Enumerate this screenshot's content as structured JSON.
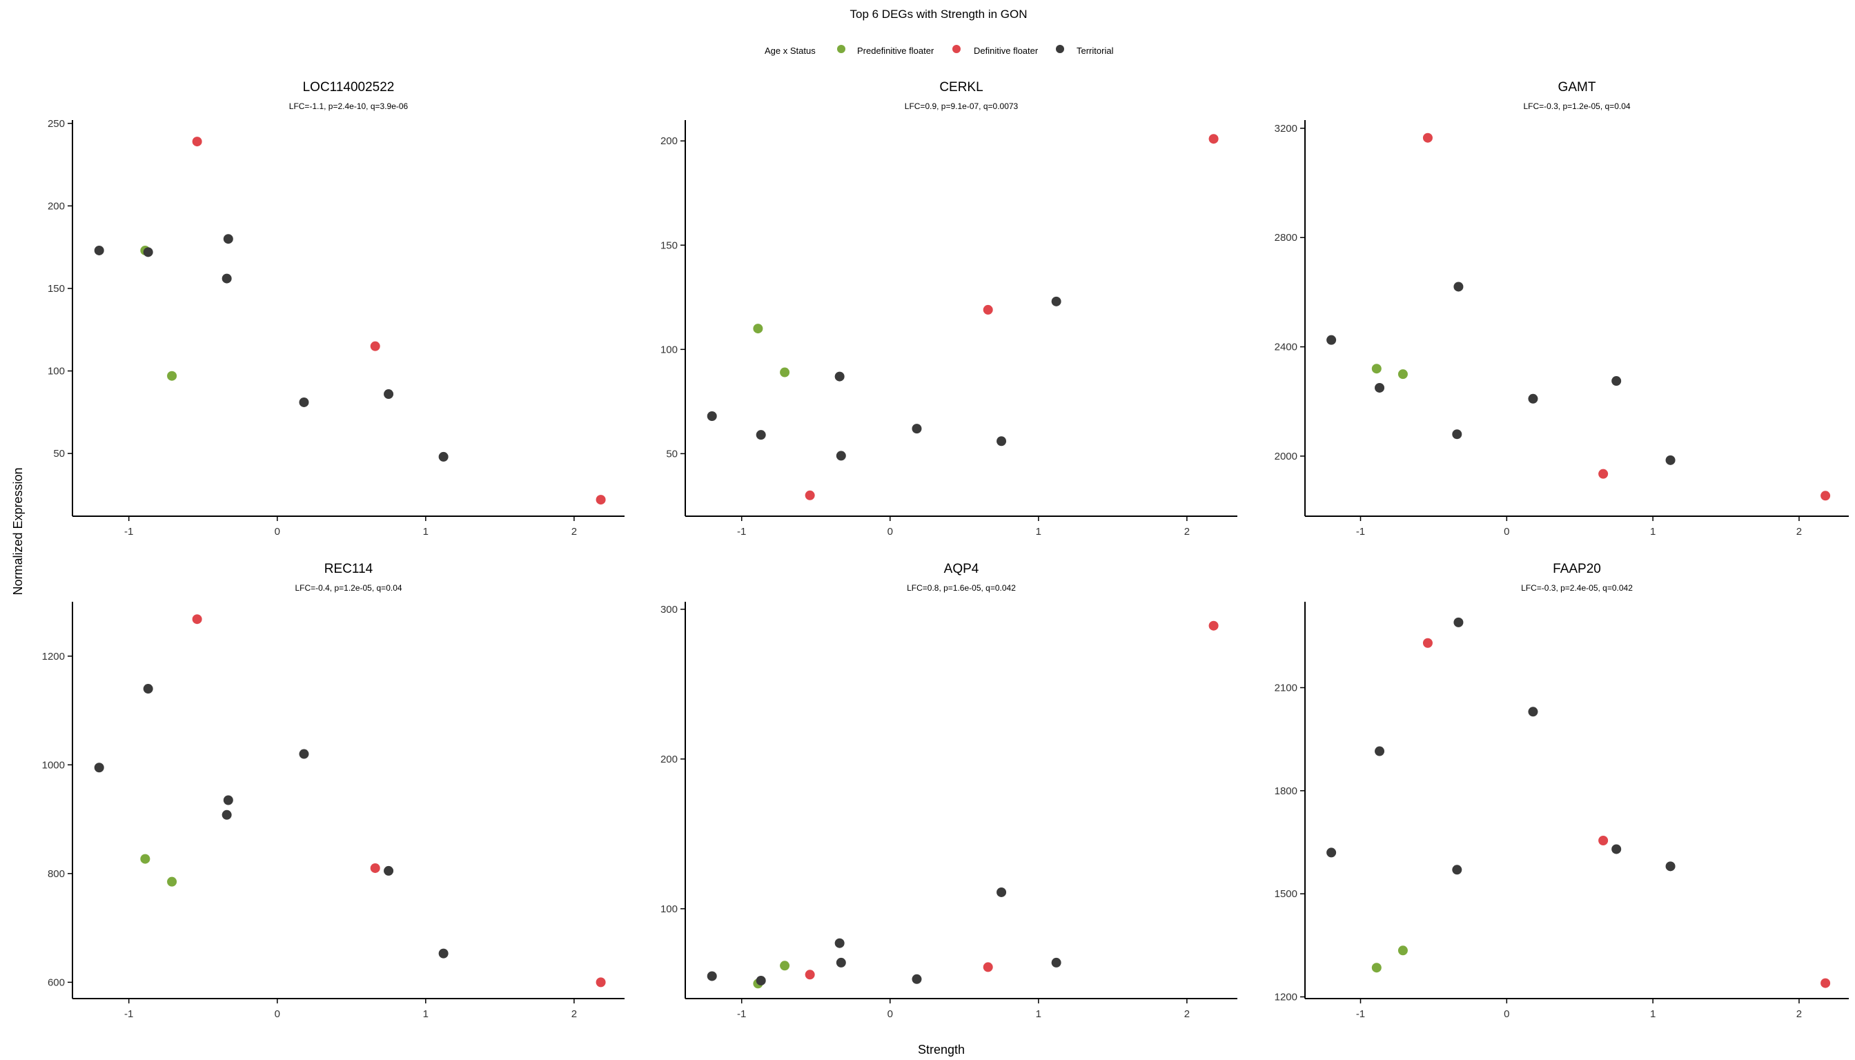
{
  "chart_data": {
    "type": "scatter",
    "title": "Top 6 DEGs with Strength in GON",
    "xlabel": "Strength",
    "ylabel": "Normalized Expression",
    "grid": false,
    "legend": {
      "title": "Age x Status",
      "placement": "top-center",
      "entries": [
        {
          "name": "Predefinitive floater",
          "color": "#7CAA3C"
        },
        {
          "name": "Definitive floater",
          "color": "#E0454B"
        },
        {
          "name": "Territorial",
          "color": "#3A3A3A"
        }
      ]
    },
    "xlim": [
      -1.38,
      2.34
    ],
    "xticks": [
      "-1",
      "0",
      "1",
      "2"
    ],
    "panels": [
      {
        "title": "LOC114002522",
        "subtitle": "LFC=-1.1, p=2.4e-10, q=3.9e-06",
        "ylim": [
          12,
          252
        ],
        "yticks": [
          "50",
          "100",
          "150",
          "200",
          "250"
        ],
        "points": [
          {
            "x": -1.2,
            "y": 173,
            "group": "Territorial"
          },
          {
            "x": -0.89,
            "y": 173,
            "group": "Predefinitive floater"
          },
          {
            "x": -0.87,
            "y": 172,
            "group": "Territorial"
          },
          {
            "x": -0.71,
            "y": 97,
            "group": "Predefinitive floater"
          },
          {
            "x": -0.54,
            "y": 239,
            "group": "Definitive floater"
          },
          {
            "x": -0.34,
            "y": 156,
            "group": "Territorial"
          },
          {
            "x": -0.33,
            "y": 180,
            "group": "Territorial"
          },
          {
            "x": 0.18,
            "y": 81,
            "group": "Territorial"
          },
          {
            "x": 0.66,
            "y": 115,
            "group": "Definitive floater"
          },
          {
            "x": 0.75,
            "y": 86,
            "group": "Territorial"
          },
          {
            "x": 1.12,
            "y": 48,
            "group": "Territorial"
          },
          {
            "x": 2.18,
            "y": 22,
            "group": "Definitive floater"
          }
        ]
      },
      {
        "title": "CERKL",
        "subtitle": "LFC=0.9, p=9.1e-07, q=0.0073",
        "ylim": [
          20,
          210
        ],
        "yticks": [
          "50",
          "100",
          "150",
          "200"
        ],
        "points": [
          {
            "x": -1.2,
            "y": 68,
            "group": "Territorial"
          },
          {
            "x": -0.89,
            "y": 110,
            "group": "Predefinitive floater"
          },
          {
            "x": -0.87,
            "y": 59,
            "group": "Territorial"
          },
          {
            "x": -0.71,
            "y": 89,
            "group": "Predefinitive floater"
          },
          {
            "x": -0.54,
            "y": 30,
            "group": "Definitive floater"
          },
          {
            "x": -0.34,
            "y": 87,
            "group": "Territorial"
          },
          {
            "x": -0.33,
            "y": 49,
            "group": "Territorial"
          },
          {
            "x": 0.18,
            "y": 62,
            "group": "Territorial"
          },
          {
            "x": 0.66,
            "y": 119,
            "group": "Definitive floater"
          },
          {
            "x": 0.75,
            "y": 56,
            "group": "Territorial"
          },
          {
            "x": 1.12,
            "y": 123,
            "group": "Territorial"
          },
          {
            "x": 2.18,
            "y": 201,
            "group": "Definitive floater"
          }
        ]
      },
      {
        "title": "GAMT",
        "subtitle": "LFC=-0.3, p=1.2e-05, q=0.04",
        "ylim": [
          1780,
          3230
        ],
        "yticks": [
          "2000",
          "2400",
          "2800",
          "3200"
        ],
        "points": [
          {
            "x": -1.2,
            "y": 2425,
            "group": "Territorial"
          },
          {
            "x": -0.89,
            "y": 2320,
            "group": "Predefinitive floater"
          },
          {
            "x": -0.87,
            "y": 2250,
            "group": "Territorial"
          },
          {
            "x": -0.71,
            "y": 2300,
            "group": "Predefinitive floater"
          },
          {
            "x": -0.54,
            "y": 3165,
            "group": "Definitive floater"
          },
          {
            "x": -0.34,
            "y": 2080,
            "group": "Territorial"
          },
          {
            "x": -0.33,
            "y": 2620,
            "group": "Territorial"
          },
          {
            "x": 0.18,
            "y": 2210,
            "group": "Territorial"
          },
          {
            "x": 0.66,
            "y": 1935,
            "group": "Definitive floater"
          },
          {
            "x": 0.75,
            "y": 2275,
            "group": "Territorial"
          },
          {
            "x": 1.12,
            "y": 1985,
            "group": "Territorial"
          },
          {
            "x": 2.18,
            "y": 1855,
            "group": "Definitive floater"
          }
        ]
      },
      {
        "title": "REC114",
        "subtitle": "LFC=-0.4, p=1.2e-05, q=0.04",
        "ylim": [
          570,
          1300
        ],
        "yticks": [
          "600",
          "800",
          "1000",
          "1200"
        ],
        "points": [
          {
            "x": -1.2,
            "y": 995,
            "group": "Territorial"
          },
          {
            "x": -0.89,
            "y": 827,
            "group": "Predefinitive floater"
          },
          {
            "x": -0.87,
            "y": 1140,
            "group": "Territorial"
          },
          {
            "x": -0.71,
            "y": 785,
            "group": "Predefinitive floater"
          },
          {
            "x": -0.54,
            "y": 1268,
            "group": "Definitive floater"
          },
          {
            "x": -0.34,
            "y": 908,
            "group": "Territorial"
          },
          {
            "x": -0.33,
            "y": 935,
            "group": "Territorial"
          },
          {
            "x": 0.18,
            "y": 1020,
            "group": "Territorial"
          },
          {
            "x": 0.66,
            "y": 810,
            "group": "Definitive floater"
          },
          {
            "x": 0.75,
            "y": 805,
            "group": "Territorial"
          },
          {
            "x": 1.12,
            "y": 653,
            "group": "Territorial"
          },
          {
            "x": 2.18,
            "y": 600,
            "group": "Definitive floater"
          }
        ]
      },
      {
        "title": "AQP4",
        "subtitle": "LFC=0.8, p=1.6e-05, q=0.042",
        "ylim": [
          40,
          305
        ],
        "yticks": [
          "100",
          "200",
          "300"
        ],
        "points": [
          {
            "x": -1.2,
            "y": 55,
            "group": "Territorial"
          },
          {
            "x": -0.89,
            "y": 50,
            "group": "Predefinitive floater"
          },
          {
            "x": -0.87,
            "y": 52,
            "group": "Territorial"
          },
          {
            "x": -0.71,
            "y": 62,
            "group": "Predefinitive floater"
          },
          {
            "x": -0.54,
            "y": 56,
            "group": "Definitive floater"
          },
          {
            "x": -0.34,
            "y": 77,
            "group": "Territorial"
          },
          {
            "x": -0.33,
            "y": 64,
            "group": "Territorial"
          },
          {
            "x": 0.18,
            "y": 53,
            "group": "Territorial"
          },
          {
            "x": 0.66,
            "y": 61,
            "group": "Definitive floater"
          },
          {
            "x": 0.75,
            "y": 111,
            "group": "Territorial"
          },
          {
            "x": 1.12,
            "y": 64,
            "group": "Territorial"
          },
          {
            "x": 2.18,
            "y": 289,
            "group": "Definitive floater"
          }
        ]
      },
      {
        "title": "FAAP20",
        "subtitle": "LFC=-0.3, p=2.4e-05, q=0.042",
        "ylim": [
          1195,
          2350
        ],
        "yticks": [
          "1200",
          "1500",
          "1800",
          "2100"
        ],
        "points": [
          {
            "x": -1.2,
            "y": 1620,
            "group": "Territorial"
          },
          {
            "x": -0.89,
            "y": 1285,
            "group": "Predefinitive floater"
          },
          {
            "x": -0.87,
            "y": 1915,
            "group": "Territorial"
          },
          {
            "x": -0.71,
            "y": 1335,
            "group": "Predefinitive floater"
          },
          {
            "x": -0.54,
            "y": 2230,
            "group": "Definitive floater"
          },
          {
            "x": -0.34,
            "y": 1570,
            "group": "Territorial"
          },
          {
            "x": -0.33,
            "y": 2290,
            "group": "Territorial"
          },
          {
            "x": 0.18,
            "y": 2030,
            "group": "Territorial"
          },
          {
            "x": 0.66,
            "y": 1655,
            "group": "Definitive floater"
          },
          {
            "x": 0.75,
            "y": 1630,
            "group": "Territorial"
          },
          {
            "x": 1.12,
            "y": 1580,
            "group": "Territorial"
          },
          {
            "x": 2.18,
            "y": 1240,
            "group": "Definitive floater"
          }
        ]
      }
    ]
  }
}
